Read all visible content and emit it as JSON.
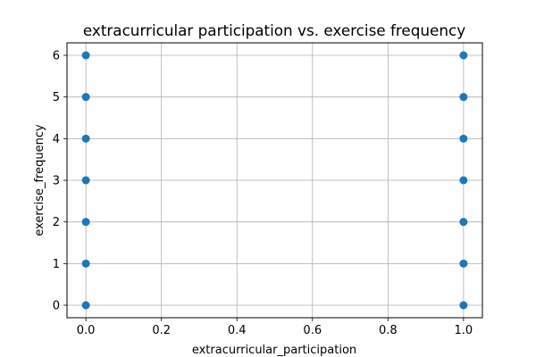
{
  "chart_data": {
    "type": "scatter",
    "title": "extracurricular participation vs. exercise frequency",
    "xlabel": "extracurricular_participation",
    "ylabel": "exercise_frequency",
    "xlim": [
      -0.05,
      1.05
    ],
    "ylim": [
      -0.3,
      6.3
    ],
    "x_ticks": [
      0.0,
      0.2,
      0.4,
      0.6,
      0.8,
      1.0
    ],
    "x_tick_labels": [
      "0.0",
      "0.2",
      "0.4",
      "0.6",
      "0.8",
      "1.0"
    ],
    "y_ticks": [
      0,
      1,
      2,
      3,
      4,
      5,
      6
    ],
    "y_tick_labels": [
      "0",
      "1",
      "2",
      "3",
      "4",
      "5",
      "6"
    ],
    "grid": true,
    "marker_color": "#1f77b4",
    "points": [
      {
        "x": 0,
        "y": 0
      },
      {
        "x": 0,
        "y": 1
      },
      {
        "x": 0,
        "y": 2
      },
      {
        "x": 0,
        "y": 3
      },
      {
        "x": 0,
        "y": 4
      },
      {
        "x": 0,
        "y": 5
      },
      {
        "x": 0,
        "y": 6
      },
      {
        "x": 1,
        "y": 0
      },
      {
        "x": 1,
        "y": 1
      },
      {
        "x": 1,
        "y": 2
      },
      {
        "x": 1,
        "y": 3
      },
      {
        "x": 1,
        "y": 4
      },
      {
        "x": 1,
        "y": 5
      },
      {
        "x": 1,
        "y": 6
      }
    ]
  }
}
